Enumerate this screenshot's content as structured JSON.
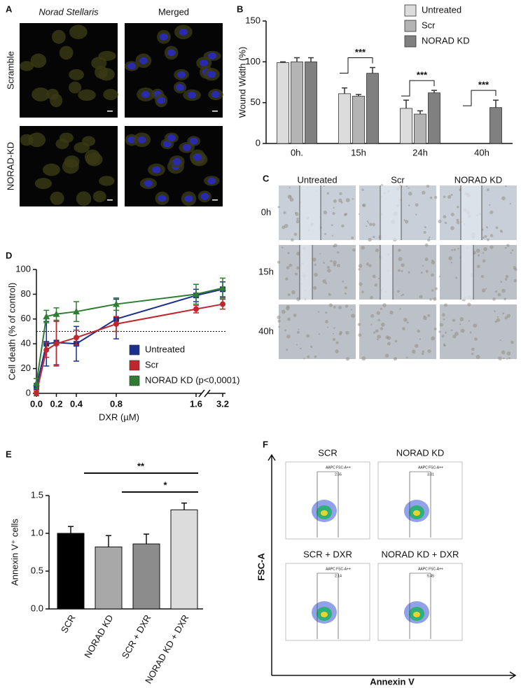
{
  "panels": {
    "labels": [
      "A",
      "B",
      "C",
      "D",
      "E",
      "F"
    ],
    "A": {
      "columns": [
        "Norad Stellaris",
        "Merged"
      ],
      "rows": [
        "Scramble",
        "NORAD-KD"
      ]
    },
    "C": {
      "columns": [
        "Untreated",
        "Scr",
        "NORAD KD"
      ],
      "rows": [
        "0h",
        "15h",
        "40h"
      ]
    },
    "F": {
      "plots": [
        {
          "title": "SCR",
          "gate_value": 2.65
        },
        {
          "title": "NORAD KD",
          "gate_value": 3.01
        },
        {
          "title": "SCR + DXR",
          "gate_value": 2.14
        },
        {
          "title": "NORAD KD + DXR",
          "gate_value": 5.45
        }
      ],
      "gate_label": "AAPC FSC-A++",
      "y_label": "FSC-A",
      "x_label": "Annexin V"
    }
  },
  "chart_data": [
    {
      "type": "bar",
      "y_label": "Wound Width (%)",
      "categories": [
        "0h.",
        "15h",
        "24h",
        "40h"
      ],
      "series": [
        {
          "name": "Untreated",
          "color": "#dcdcdc",
          "values": [
            99,
            61,
            43,
            null
          ],
          "errors": [
            1,
            7,
            10,
            null
          ]
        },
        {
          "name": "Scr",
          "color": "#b4b4b4",
          "values": [
            100,
            58,
            36,
            null
          ],
          "errors": [
            5,
            2,
            4,
            null
          ]
        },
        {
          "name": "NORAD KD",
          "color": "#808080",
          "values": [
            100,
            86,
            62,
            44
          ],
          "errors": [
            5,
            7,
            3,
            9
          ]
        }
      ],
      "ylim": [
        0,
        150
      ],
      "yticks": [
        0,
        50,
        100,
        150
      ],
      "legend": "top-right",
      "annotations": [
        "***",
        "***",
        "***"
      ]
    },
    {
      "type": "line",
      "y_label": "Cell death (% of control)",
      "x_label": "DXR (µM)",
      "x": [
        0,
        0.1,
        0.2,
        0.4,
        0.8,
        1.6,
        3.2
      ],
      "series": [
        {
          "name": "Untreated",
          "color": "#1c2f8f",
          "marker": "square",
          "values": [
            5,
            40,
            41,
            40,
            60,
            79,
            84
          ],
          "errors": [
            3,
            18,
            18,
            14,
            16,
            5,
            6
          ]
        },
        {
          "name": "Scr",
          "color": "#c0272d",
          "marker": "circle",
          "values": [
            0,
            35,
            40,
            45,
            56,
            68,
            72
          ],
          "errors": [
            2,
            6,
            18,
            6,
            6,
            3,
            4
          ]
        },
        {
          "name": "NORAD KD (p<0,0001)",
          "color": "#2e7d32",
          "marker": "triangle",
          "values": [
            8,
            62,
            64,
            66,
            72,
            80,
            85
          ],
          "errors": [
            4,
            5,
            5,
            8,
            5,
            8,
            8
          ]
        }
      ],
      "xlim": [
        0,
        3.2
      ],
      "xticks": [
        {
          "value": 0,
          "label": "0.0"
        },
        0.2,
        0.4,
        0.8,
        1.6,
        3.2
      ],
      "ylim": [
        0,
        100
      ],
      "yticks": [
        0,
        20,
        40,
        60,
        80,
        100
      ],
      "reference_line": 50,
      "legend": "lower-right"
    },
    {
      "type": "bar",
      "y_label": "Annexin V⁺ cells",
      "categories": [
        "SCR",
        "NORAD KD",
        "SCR + DXR",
        "NORAD KD + DXR"
      ],
      "values": [
        1.0,
        0.82,
        0.86,
        1.31
      ],
      "errors": [
        0.09,
        0.15,
        0.13,
        0.09
      ],
      "colors": [
        "#000000",
        "#a8a8a8",
        "#8c8c8c",
        "#dcdcdc"
      ],
      "ylim": [
        0,
        1.5
      ],
      "yticks": [
        {
          "value": 0,
          "label": "0.0"
        },
        0.5,
        {
          "value": 1,
          "label": "1.0"
        },
        1.5
      ],
      "annotations": [
        "**",
        "*"
      ]
    }
  ]
}
